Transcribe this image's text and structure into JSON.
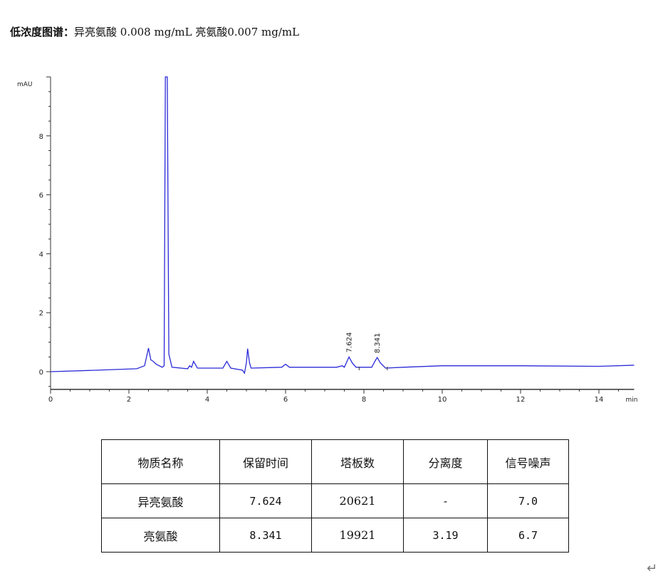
{
  "caption": {
    "bold": "低浓度图谱：",
    "text": "异亮氨酸 0.008 mg/mL 亮氨酸0.007 mg/mL"
  },
  "chart_data": {
    "type": "line",
    "xlabel": "min",
    "ylabel": "mAU",
    "xlim": [
      0,
      14.9
    ],
    "ylim": [
      -0.6,
      10
    ],
    "xticks": [
      0,
      2,
      4,
      6,
      8,
      10,
      12,
      14
    ],
    "yticks": [
      0,
      2,
      4,
      6,
      8
    ],
    "grid": false,
    "line_color": "#2a2ad8",
    "peak_labels": [
      {
        "x": 7.624,
        "y": 0.5,
        "text": "7.624"
      },
      {
        "x": 8.341,
        "y": 0.48,
        "text": "8.341"
      }
    ],
    "points": [
      [
        0,
        0.0
      ],
      [
        1.2,
        0.05
      ],
      [
        2.2,
        0.1
      ],
      [
        2.4,
        0.2
      ],
      [
        2.5,
        0.8
      ],
      [
        2.56,
        0.4
      ],
      [
        2.62,
        0.35
      ],
      [
        2.7,
        0.25
      ],
      [
        2.85,
        0.15
      ],
      [
        2.9,
        0.2
      ],
      [
        2.93,
        10
      ],
      [
        2.98,
        10
      ],
      [
        3.02,
        0.6
      ],
      [
        3.1,
        0.15
      ],
      [
        3.5,
        0.1
      ],
      [
        3.55,
        0.2
      ],
      [
        3.6,
        0.15
      ],
      [
        3.65,
        0.35
      ],
      [
        3.75,
        0.12
      ],
      [
        4.4,
        0.12
      ],
      [
        4.5,
        0.35
      ],
      [
        4.6,
        0.12
      ],
      [
        4.9,
        0.05
      ],
      [
        4.95,
        -0.05
      ],
      [
        5.0,
        0.3
      ],
      [
        5.03,
        0.78
      ],
      [
        5.08,
        0.3
      ],
      [
        5.12,
        0.12
      ],
      [
        5.9,
        0.15
      ],
      [
        6.0,
        0.25
      ],
      [
        6.1,
        0.15
      ],
      [
        7.3,
        0.15
      ],
      [
        7.45,
        0.2
      ],
      [
        7.5,
        0.15
      ],
      [
        7.55,
        0.3
      ],
      [
        7.62,
        0.5
      ],
      [
        7.7,
        0.3
      ],
      [
        7.8,
        0.15
      ],
      [
        8.2,
        0.15
      ],
      [
        8.28,
        0.35
      ],
      [
        8.34,
        0.48
      ],
      [
        8.42,
        0.3
      ],
      [
        8.55,
        0.12
      ],
      [
        9,
        0.15
      ],
      [
        10,
        0.2
      ],
      [
        12,
        0.2
      ],
      [
        14,
        0.18
      ],
      [
        14.9,
        0.22
      ]
    ]
  },
  "table": {
    "headers": [
      "物质名称",
      "保留时间",
      "塔板数",
      "分离度",
      "信号噪声"
    ],
    "rows": [
      [
        "异亮氨酸",
        "7.624",
        "20621",
        "-",
        "7.0"
      ],
      [
        "亮氨酸",
        "8.341",
        "19921",
        "3.19",
        "6.7"
      ]
    ]
  },
  "paragraph_mark": "↵"
}
